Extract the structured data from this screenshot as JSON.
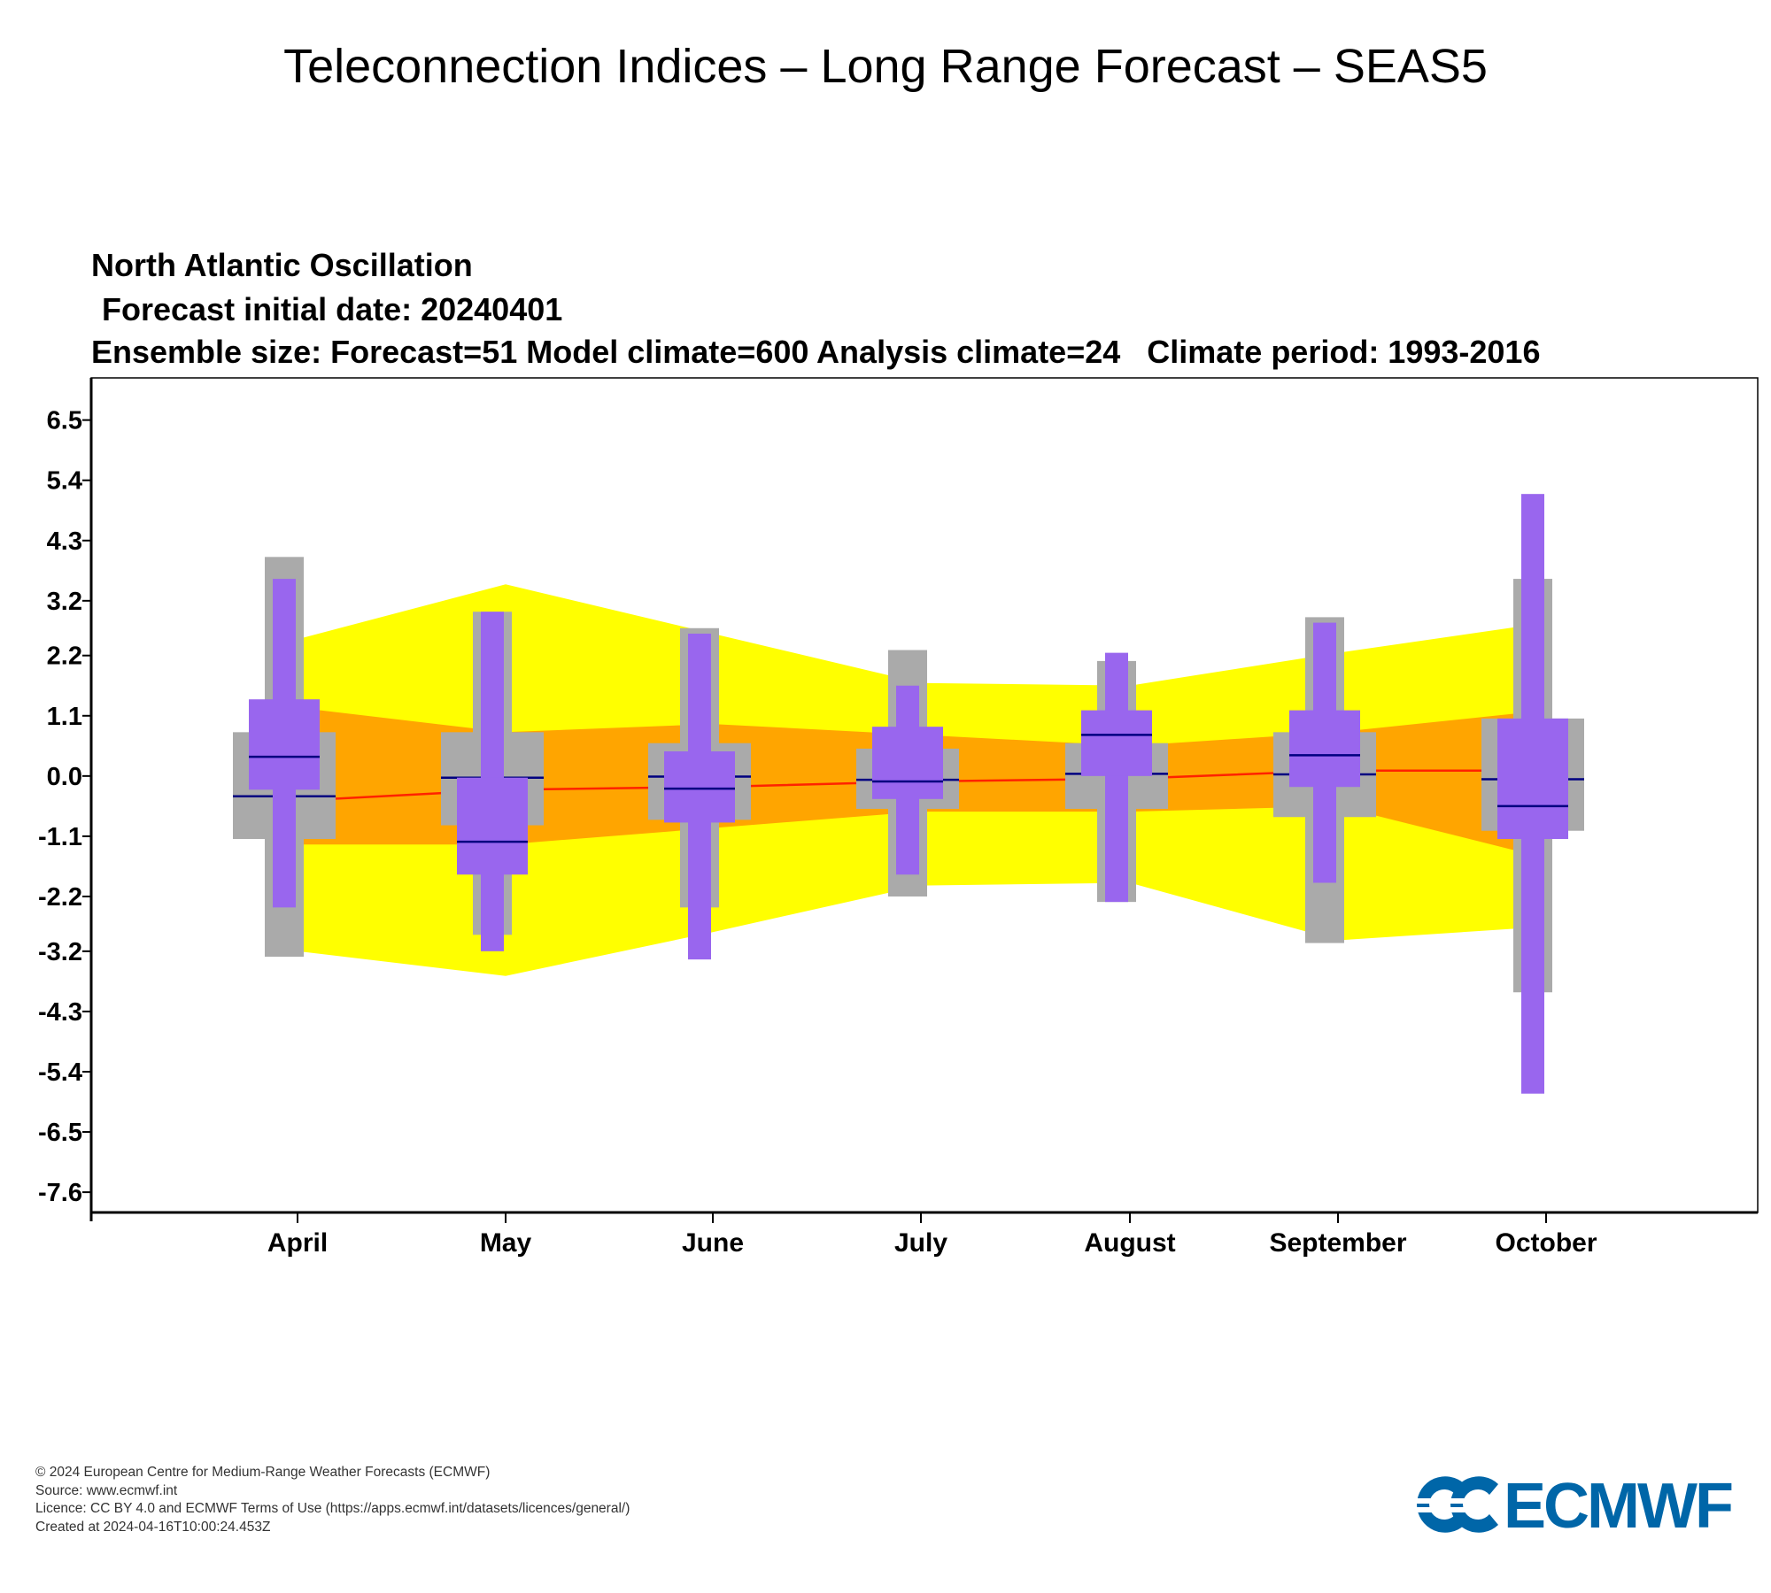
{
  "header": {
    "title": "Teleconnection Indices – Long Range Forecast – SEAS5"
  },
  "chart_data": {
    "type": "box",
    "title": "North Atlantic Oscillation",
    "subtitle_lines": [
      "Forecast initial date: 20240401",
      "Ensemble size: Forecast=51 Model climate=600 Analysis climate=24   Climate period: 1993-2016"
    ],
    "ylim": [
      -7.97,
      7.27
    ],
    "yticks": [
      6.5,
      5.4,
      4.3,
      3.2,
      2.2,
      1.1,
      0.0,
      -1.1,
      -2.2,
      -3.2,
      -4.3,
      -5.4,
      -6.5,
      -7.6
    ],
    "ytick_labels": [
      "6.5",
      "5.4",
      "4.3",
      "3.2",
      "2.2",
      "1.1",
      "0.0",
      "-1.1",
      "-2.2",
      "-3.2",
      "-4.3",
      "-5.4",
      "-6.5",
      "-7.6"
    ],
    "categories": [
      "April",
      "May",
      "June",
      "July",
      "August",
      "September",
      "October"
    ],
    "colors": {
      "outer_band": "#ffff00",
      "inner_band": "#ffa500",
      "model_climate_box": "#aaaaaa",
      "forecast_box": "#9966ee",
      "median_line": "#000080",
      "analysis_median_line": "#ff2200"
    },
    "outer_band": {
      "upper": [
        2.5,
        3.5,
        2.6,
        1.7,
        1.65,
        2.25,
        2.8
      ],
      "lower": [
        -3.2,
        -3.65,
        -2.85,
        -2.0,
        -1.95,
        -3.0,
        -2.75
      ]
    },
    "inner_band": {
      "upper": [
        1.25,
        0.8,
        0.95,
        0.75,
        0.55,
        0.8,
        1.2
      ],
      "lower": [
        -1.25,
        -1.25,
        -0.95,
        -0.65,
        -0.65,
        -0.55,
        -1.5
      ]
    },
    "analysis_median": [
      -0.45,
      -0.25,
      -0.2,
      -0.1,
      -0.05,
      0.1,
      0.1
    ],
    "model_climate": [
      {
        "min": -3.3,
        "q1": -1.15,
        "median": -0.37,
        "q3": 0.8,
        "max": 4.0
      },
      {
        "min": -2.9,
        "q1": -0.9,
        "median": -0.03,
        "q3": 0.8,
        "max": 3.0
      },
      {
        "min": -2.4,
        "q1": -0.8,
        "median": -0.01,
        "q3": 0.6,
        "max": 2.7
      },
      {
        "min": -2.2,
        "q1": -0.6,
        "median": -0.07,
        "q3": 0.5,
        "max": 2.3
      },
      {
        "min": -2.3,
        "q1": -0.6,
        "median": 0.04,
        "q3": 0.6,
        "max": 2.1
      },
      {
        "min": -3.05,
        "q1": -0.75,
        "median": 0.03,
        "q3": 0.8,
        "max": 2.9
      },
      {
        "min": -3.95,
        "q1": -1.0,
        "median": -0.06,
        "q3": 1.05,
        "max": 3.6
      }
    ],
    "forecast": [
      {
        "min": -2.4,
        "q1": -0.25,
        "median": 0.35,
        "q3": 1.4,
        "max": 3.6
      },
      {
        "min": -3.2,
        "q1": -1.8,
        "median": -1.2,
        "q3": -0.03,
        "max": 3.0
      },
      {
        "min": -3.35,
        "q1": -0.85,
        "median": -0.23,
        "q3": 0.45,
        "max": 2.6
      },
      {
        "min": -1.8,
        "q1": -0.42,
        "median": -0.1,
        "q3": 0.9,
        "max": 1.65
      },
      {
        "min": -2.3,
        "q1": 0.0,
        "median": 0.75,
        "q3": 1.2,
        "max": 2.25
      },
      {
        "min": -1.95,
        "q1": -0.2,
        "median": 0.38,
        "q3": 1.2,
        "max": 2.8
      },
      {
        "min": -5.8,
        "q1": -1.15,
        "median": -0.55,
        "q3": 1.05,
        "max": 5.15
      }
    ]
  },
  "footer": {
    "copyright": "© 2024 European Centre for Medium-Range Weather Forecasts (ECMWF)",
    "source": "Source: www.ecmwf.int",
    "licence": "Licence: CC BY 4.0 and ECMWF Terms of Use (https://apps.ecmwf.int/datasets/licences/general/)",
    "created": "Created at 2024-04-16T10:00:24.453Z",
    "logo_text": "ECMWF",
    "logo_color": "#0066a8"
  }
}
